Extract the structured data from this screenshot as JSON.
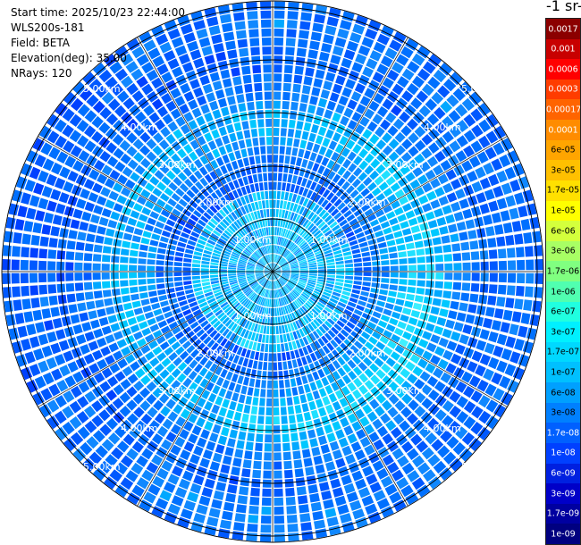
{
  "info": {
    "start_time": "Start time: 2025/10/23 22:44:00",
    "device": "WLS200s-181",
    "field": "Field: BETA",
    "elevation": "Elevation(deg): 35.00",
    "nrays": "NRays: 120"
  },
  "colorbar": {
    "unit_label": "-1 sr-",
    "entries": [
      {
        "label": "0.0017",
        "color": "#8b0000",
        "text_color": "#ffffff"
      },
      {
        "label": "0.001",
        "color": "#c80000",
        "text_color": "#ffffff"
      },
      {
        "label": "0.0006",
        "color": "#ff0000",
        "text_color": "#ffffff"
      },
      {
        "label": "0.0003",
        "color": "#ff3c00",
        "text_color": "#ffffff"
      },
      {
        "label": "0.00017",
        "color": "#ff6400",
        "text_color": "#ffffff"
      },
      {
        "label": "0.0001",
        "color": "#ff8c00",
        "text_color": "#ffffff"
      },
      {
        "label": "6e-05",
        "color": "#ffa500",
        "text_color": "#000000"
      },
      {
        "label": "3e-05",
        "color": "#ffc000",
        "text_color": "#000000"
      },
      {
        "label": "1.7e-05",
        "color": "#ffe000",
        "text_color": "#000000"
      },
      {
        "label": "1e-05",
        "color": "#ffff00",
        "text_color": "#000000"
      },
      {
        "label": "6e-06",
        "color": "#d4ff3c",
        "text_color": "#000000"
      },
      {
        "label": "3e-06",
        "color": "#a8ff64",
        "text_color": "#000000"
      },
      {
        "label": "1.7e-06",
        "color": "#80ff80",
        "text_color": "#000000"
      },
      {
        "label": "1e-06",
        "color": "#50ffb0",
        "text_color": "#000000"
      },
      {
        "label": "6e-07",
        "color": "#20ffe0",
        "text_color": "#000000"
      },
      {
        "label": "3e-07",
        "color": "#00f0ff",
        "text_color": "#000000"
      },
      {
        "label": "1.7e-07",
        "color": "#00d8ff",
        "text_color": "#000000"
      },
      {
        "label": "1e-07",
        "color": "#00c0ff",
        "text_color": "#000000"
      },
      {
        "label": "6e-08",
        "color": "#00a0ff",
        "text_color": "#000000"
      },
      {
        "label": "3e-08",
        "color": "#0080ff",
        "text_color": "#000000"
      },
      {
        "label": "1.7e-08",
        "color": "#0060ff",
        "text_color": "#ffffff"
      },
      {
        "label": "1e-08",
        "color": "#0040ff",
        "text_color": "#ffffff"
      },
      {
        "label": "6e-09",
        "color": "#0020e0",
        "text_color": "#ffffff"
      },
      {
        "label": "3e-09",
        "color": "#0000c8",
        "text_color": "#ffffff"
      },
      {
        "label": "1.7e-09",
        "color": "#0000a0",
        "text_color": "#ffffff"
      },
      {
        "label": "1e-09",
        "color": "#000080",
        "text_color": "#ffffff"
      }
    ]
  },
  "range_labels": {
    "r1": "1.00km",
    "r2": "2.00km",
    "r3": "3.00km",
    "r4": "4.00km",
    "r5": "5.00km"
  }
}
